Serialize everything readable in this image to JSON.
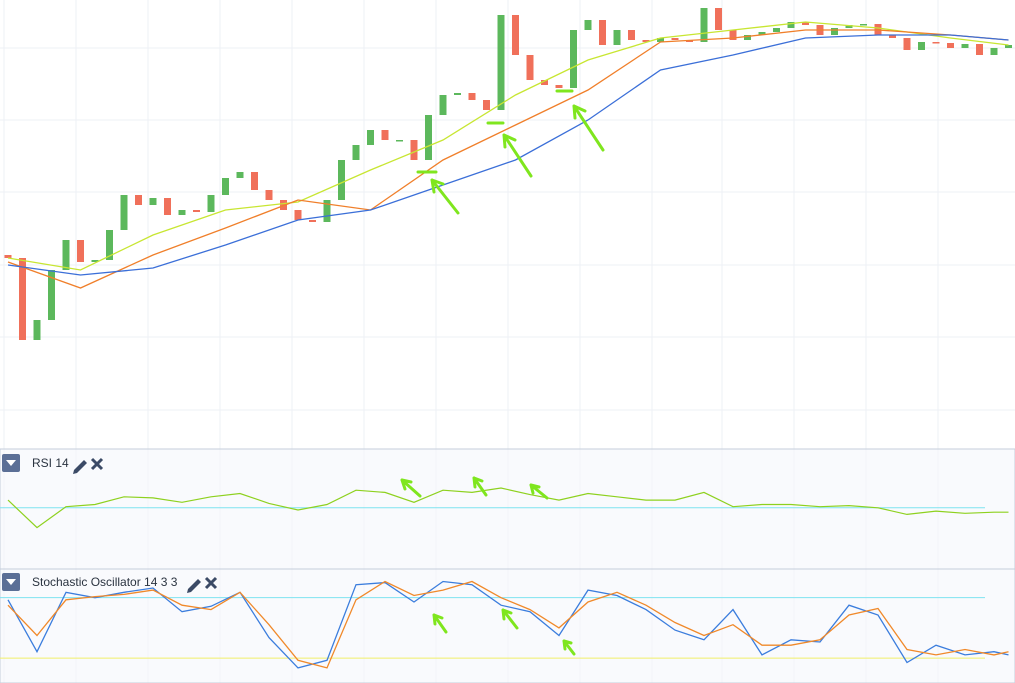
{
  "price_panel": {
    "ylim": [
      0,
      450
    ],
    "up_color": "#5cb85c",
    "down_color": "#f0705a",
    "open": [
      195,
      192,
      110,
      130,
      180,
      210,
      188,
      190,
      220,
      255,
      245,
      252,
      235,
      240,
      238,
      255,
      272,
      278,
      260,
      250,
      240,
      230,
      228,
      250,
      290,
      305,
      320,
      310,
      310,
      290,
      335,
      355,
      357,
      350,
      340,
      435,
      395,
      370,
      365,
      362,
      420,
      430,
      405,
      420,
      410,
      408,
      412,
      410,
      408,
      442,
      420,
      410,
      415,
      418,
      422,
      428,
      425,
      415,
      422,
      425,
      426,
      415,
      412,
      400,
      408,
      407,
      402,
      406,
      395,
      402
    ],
    "close": [
      192,
      110,
      130,
      180,
      210,
      188,
      190,
      220,
      255,
      245,
      252,
      235,
      240,
      238,
      255,
      272,
      278,
      260,
      250,
      240,
      230,
      228,
      250,
      290,
      305,
      320,
      310,
      310,
      290,
      335,
      355,
      357,
      350,
      340,
      435,
      395,
      370,
      365,
      362,
      420,
      430,
      405,
      420,
      410,
      408,
      412,
      410,
      408,
      442,
      420,
      410,
      415,
      418,
      422,
      428,
      425,
      415,
      422,
      425,
      426,
      415,
      412,
      400,
      408,
      407,
      402,
      406,
      395,
      402,
      405
    ],
    "ma_x": [
      0,
      5,
      10,
      15,
      20,
      25,
      30,
      35,
      40,
      45,
      50,
      55,
      60,
      65,
      69
    ],
    "ma": [
      {
        "color": "#c8e632",
        "values": [
          192,
          180,
          215,
          240,
          248,
          280,
          310,
          355,
          390,
          412,
          420,
          428,
          422,
          412,
          405
        ]
      },
      {
        "color": "#f07f2a",
        "values": [
          188,
          162,
          195,
          222,
          250,
          240,
          290,
          325,
          360,
          408,
          412,
          420,
          420,
          415,
          410
        ]
      },
      {
        "color": "#3b6fd8",
        "values": [
          185,
          175,
          182,
          205,
          230,
          240,
          265,
          290,
          330,
          380,
          395,
          412,
          415,
          415,
          410
        ]
      }
    ]
  },
  "rsi_panel": {
    "label": "RSI 14",
    "ylim": [
      0,
      100
    ],
    "level": 52,
    "color": "#8ed11f",
    "x": [
      0,
      2,
      4,
      6,
      8,
      10,
      12,
      14,
      16,
      18,
      20,
      22,
      24,
      26,
      28,
      30,
      32,
      34,
      36,
      38,
      40,
      42,
      44,
      46,
      48,
      50,
      52,
      54,
      56,
      58,
      60,
      62,
      64,
      66,
      68,
      69
    ],
    "values": [
      59,
      34,
      53,
      55,
      62,
      61,
      57,
      62,
      65,
      56,
      50,
      55,
      68,
      66,
      57,
      68,
      66,
      70,
      64,
      59,
      65,
      62,
      59,
      59,
      66,
      53,
      55,
      55,
      53,
      54,
      52,
      46,
      49,
      47,
      48,
      48
    ]
  },
  "stoch_panel": {
    "label": "Stochastic Oscillator 14 3 3",
    "ylim": [
      0,
      100
    ],
    "levels": [
      79,
      23
    ],
    "x": [
      0,
      2,
      4,
      6,
      8,
      10,
      12,
      14,
      16,
      18,
      20,
      22,
      24,
      26,
      28,
      30,
      32,
      34,
      36,
      38,
      40,
      42,
      44,
      46,
      48,
      50,
      52,
      54,
      56,
      58,
      60,
      62,
      64,
      66,
      68,
      69
    ],
    "series": [
      {
        "color": "#3b7ddd",
        "values": [
          77,
          29,
          84,
          79,
          84,
          88,
          66,
          71,
          84,
          42,
          14,
          21,
          91,
          93,
          75,
          94,
          91,
          72,
          66,
          44,
          86,
          81,
          68,
          49,
          40,
          68,
          26,
          40,
          38,
          72,
          63,
          19,
          35,
          26,
          29,
          26
        ]
      },
      {
        "color": "#f0892a",
        "values": [
          72,
          44,
          77,
          80,
          82,
          86,
          72,
          68,
          84,
          54,
          21,
          14,
          77,
          94,
          81,
          86,
          94,
          79,
          68,
          51,
          75,
          84,
          72,
          56,
          44,
          54,
          35,
          35,
          40,
          63,
          69,
          31,
          26,
          31,
          26,
          29
        ]
      }
    ]
  }
}
